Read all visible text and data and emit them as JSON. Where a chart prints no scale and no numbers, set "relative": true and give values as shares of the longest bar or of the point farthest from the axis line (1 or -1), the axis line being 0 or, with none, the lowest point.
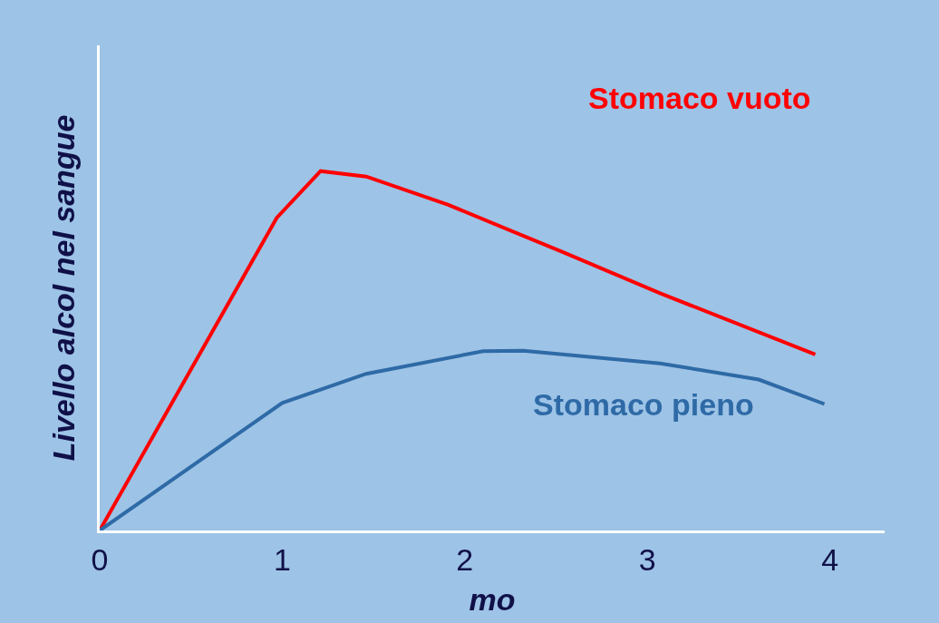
{
  "chart_data": {
    "type": "line",
    "relative": true,
    "xlabel": "mo",
    "ylabel": "Livello alcol nel sangue",
    "xlim": [
      0,
      4.3
    ],
    "xticks": [
      0,
      1,
      2,
      3,
      4
    ],
    "grid": false,
    "legend": false,
    "marker": "none",
    "line_style": "solid",
    "series": [
      {
        "name": "Stomaco vuoto",
        "color": "#ff0000",
        "x": [
          0,
          0.97,
          1.21,
          1.46,
          1.91,
          2.53,
          3.07,
          3.92
        ],
        "values": [
          0,
          0.87,
          1.0,
          0.985,
          0.906,
          0.776,
          0.66,
          0.49
        ]
      },
      {
        "name": "Stomaco pieno",
        "color": "#2e6aa6",
        "x": [
          0,
          1.0,
          1.46,
          2.1,
          2.32,
          3.07,
          3.61,
          3.97
        ],
        "values": [
          0,
          0.355,
          0.436,
          0.499,
          0.5,
          0.465,
          0.42,
          0.352
        ]
      }
    ]
  }
}
